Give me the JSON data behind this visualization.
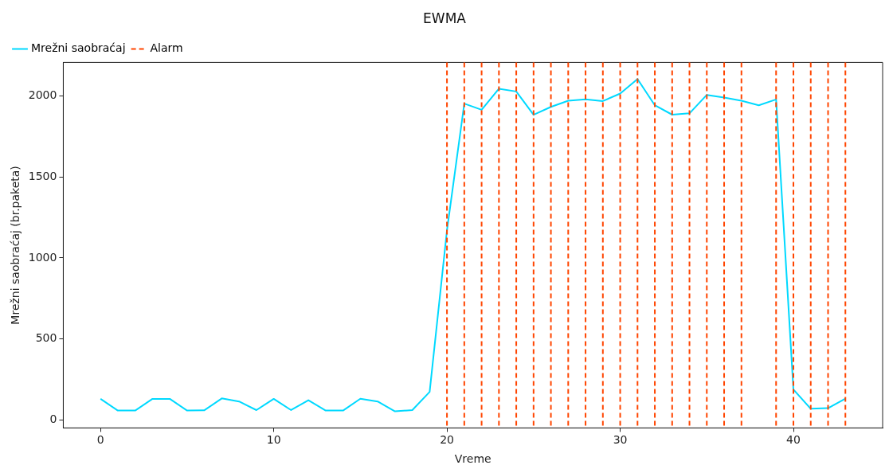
{
  "chart_data": {
    "type": "line",
    "title": "EWMA",
    "xlabel": "Vreme",
    "ylabel": "Mrežni saobraćaj (br.paketa)",
    "x": [
      0,
      1,
      2,
      3,
      4,
      5,
      6,
      7,
      8,
      9,
      10,
      11,
      12,
      13,
      14,
      15,
      16,
      17,
      18,
      19,
      20,
      21,
      22,
      23,
      24,
      25,
      26,
      27,
      28,
      29,
      30,
      31,
      32,
      33,
      34,
      35,
      36,
      37,
      38,
      39,
      40,
      41,
      42,
      43
    ],
    "series": [
      {
        "name": "Mrežni saobraćaj",
        "color": "#00d9ff",
        "values": [
          131,
          59,
          59,
          131,
          131,
          59,
          61,
          134,
          115,
          62,
          131,
          62,
          123,
          59,
          59,
          132,
          115,
          54,
          62,
          174,
          1170,
          1951,
          1913,
          2043,
          2026,
          1882,
          1931,
          1969,
          1977,
          1967,
          2013,
          2103,
          1941,
          1883,
          1891,
          2005,
          1988,
          1969,
          1941,
          1977,
          189,
          70,
          74,
          132
        ]
      }
    ],
    "ref_lines": [
      {
        "axis": "x",
        "value": 20,
        "label": "Alarm",
        "color": "#ff4500",
        "line_style": "dashed"
      },
      {
        "axis": "x",
        "value": 21,
        "color": "#ff4500",
        "line_style": "dashed"
      },
      {
        "axis": "x",
        "value": 22,
        "color": "#ff4500",
        "line_style": "dashed"
      },
      {
        "axis": "x",
        "value": 23,
        "color": "#ff4500",
        "line_style": "dashed"
      },
      {
        "axis": "x",
        "value": 24,
        "color": "#ff4500",
        "line_style": "dashed"
      },
      {
        "axis": "x",
        "value": 25,
        "color": "#ff4500",
        "line_style": "dashed"
      },
      {
        "axis": "x",
        "value": 26,
        "color": "#ff4500",
        "line_style": "dashed"
      },
      {
        "axis": "x",
        "value": 27,
        "color": "#ff4500",
        "line_style": "dashed"
      },
      {
        "axis": "x",
        "value": 28,
        "color": "#ff4500",
        "line_style": "dashed"
      },
      {
        "axis": "x",
        "value": 29,
        "color": "#ff4500",
        "line_style": "dashed"
      },
      {
        "axis": "x",
        "value": 30,
        "color": "#ff4500",
        "line_style": "dashed"
      },
      {
        "axis": "x",
        "value": 31,
        "color": "#ff4500",
        "line_style": "dashed"
      },
      {
        "axis": "x",
        "value": 32,
        "color": "#ff4500",
        "line_style": "dashed"
      },
      {
        "axis": "x",
        "value": 33,
        "color": "#ff4500",
        "line_style": "dashed"
      },
      {
        "axis": "x",
        "value": 34,
        "color": "#ff4500",
        "line_style": "dashed"
      },
      {
        "axis": "x",
        "value": 35,
        "color": "#ff4500",
        "line_style": "dashed"
      },
      {
        "axis": "x",
        "value": 36,
        "color": "#ff4500",
        "line_style": "dashed"
      },
      {
        "axis": "x",
        "value": 37,
        "color": "#ff4500",
        "line_style": "dashed"
      },
      {
        "axis": "x",
        "value": 39,
        "color": "#ff4500",
        "line_style": "dashed"
      },
      {
        "axis": "x",
        "value": 40,
        "color": "#ff4500",
        "line_style": "dashed"
      },
      {
        "axis": "x",
        "value": 41,
        "color": "#ff4500",
        "line_style": "dashed"
      },
      {
        "axis": "x",
        "value": 42,
        "color": "#ff4500",
        "line_style": "dashed"
      },
      {
        "axis": "x",
        "value": 43,
        "color": "#ff4500",
        "line_style": "dashed"
      }
    ],
    "xlim": [
      -2.15,
      45.15
    ],
    "ylim": [
      -48,
      2205
    ],
    "xticks": [
      0,
      10,
      20,
      30,
      40
    ],
    "yticks": [
      0,
      500,
      1000,
      1500,
      2000
    ],
    "grid": false,
    "legend": "top left",
    "marker": "none",
    "line_style": "solid"
  }
}
